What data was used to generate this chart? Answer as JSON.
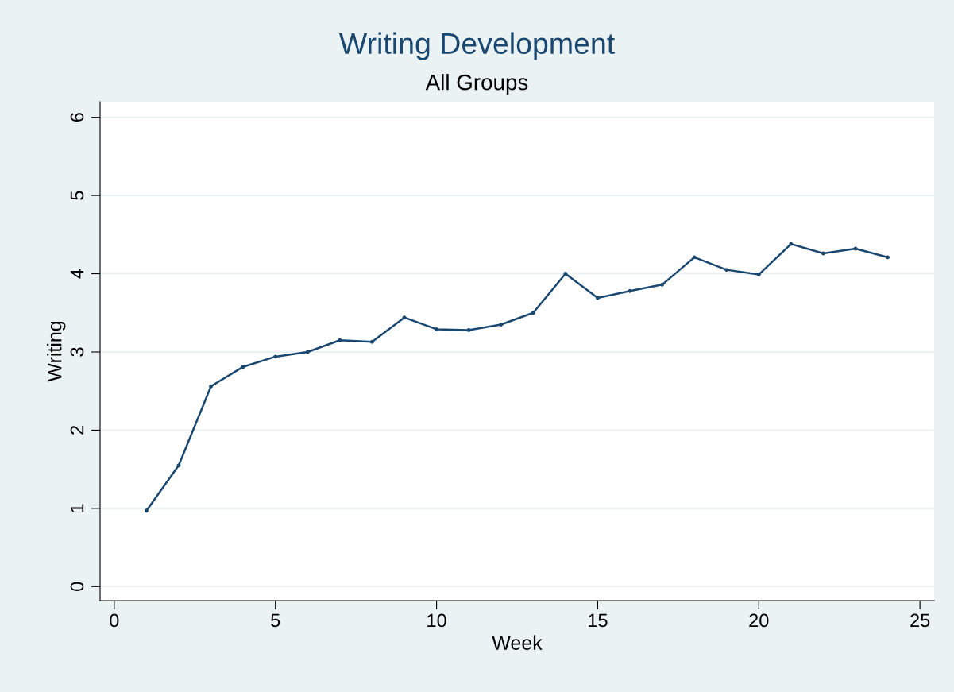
{
  "chart_data": {
    "type": "line",
    "title": "Writing Development",
    "subtitle": "All Groups",
    "xlabel": "Week",
    "ylabel": "Writing",
    "x": [
      1,
      2,
      3,
      4,
      5,
      6,
      7,
      8,
      9,
      10,
      11,
      12,
      13,
      14,
      15,
      16,
      17,
      18,
      19,
      20,
      21,
      22,
      23,
      24
    ],
    "series": [
      {
        "color": "#1a476f",
        "values": [
          0.97,
          1.55,
          2.56,
          2.81,
          2.94,
          3.0,
          3.15,
          3.13,
          3.44,
          3.29,
          3.28,
          3.35,
          3.5,
          4.0,
          3.69,
          3.78,
          3.86,
          4.21,
          4.05,
          3.99,
          4.38,
          4.26,
          4.32,
          4.21
        ]
      }
    ],
    "xlim": [
      -0.44,
      25.44
    ],
    "ylim": [
      -0.18,
      6.2
    ],
    "xticks": [
      0,
      5,
      10,
      15,
      20,
      25
    ],
    "yticks": [
      0,
      1,
      2,
      3,
      4,
      5,
      6
    ],
    "grid": "y",
    "marker": "circle",
    "line_style": "solid",
    "legend": false
  }
}
